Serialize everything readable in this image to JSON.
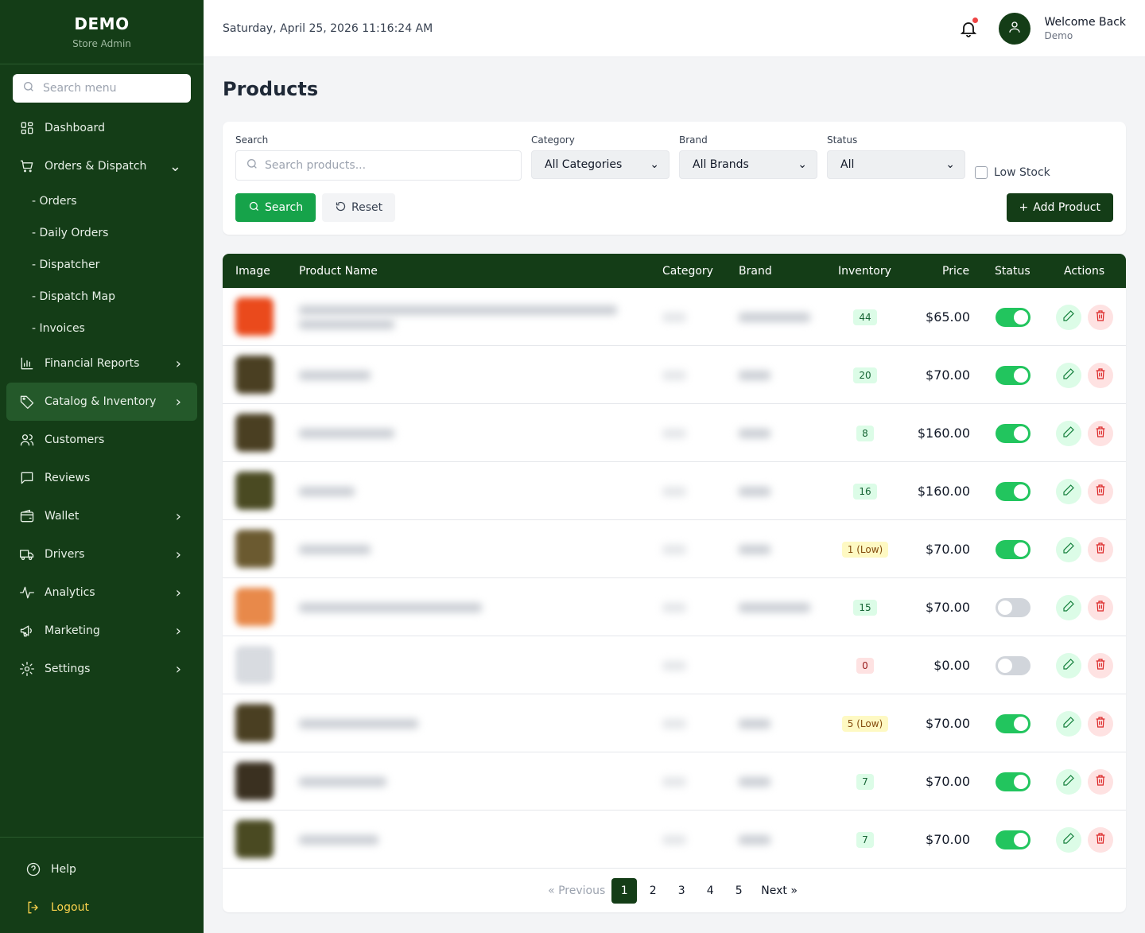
{
  "sidebar": {
    "brand": "DEMO",
    "subtitle": "Store Admin",
    "search_placeholder": "Search menu",
    "items": [
      {
        "label": "Dashboard",
        "icon": "dashboard-icon"
      },
      {
        "label": "Orders & Dispatch",
        "icon": "cart-icon",
        "expanded": true,
        "children": [
          "- Orders",
          "- Daily Orders",
          "- Dispatcher",
          "- Dispatch Map",
          "- Invoices"
        ]
      },
      {
        "label": "Financial Reports",
        "icon": "bar-chart-icon"
      },
      {
        "label": "Catalog & Inventory",
        "icon": "tag-icon",
        "active": true
      },
      {
        "label": "Customers",
        "icon": "users-icon"
      },
      {
        "label": "Reviews",
        "icon": "message-icon"
      },
      {
        "label": "Wallet",
        "icon": "wallet-icon"
      },
      {
        "label": "Drivers",
        "icon": "truck-icon"
      },
      {
        "label": "Analytics",
        "icon": "activity-icon"
      },
      {
        "label": "Marketing",
        "icon": "megaphone-icon"
      },
      {
        "label": "Settings",
        "icon": "gear-icon"
      }
    ],
    "footer": {
      "help": "Help",
      "logout": "Logout"
    }
  },
  "header": {
    "datetime": "Saturday, April 25, 2026 11:16:24 AM",
    "welcome": "Welcome Back",
    "user": "Demo"
  },
  "page": {
    "title": "Products"
  },
  "filters": {
    "search_label": "Search",
    "search_placeholder": "Search products...",
    "category_label": "Category",
    "category_value": "All Categories",
    "brand_label": "Brand",
    "brand_value": "All Brands",
    "status_label": "Status",
    "status_value": "All",
    "low_stock": "Low Stock",
    "search_btn": "Search",
    "reset_btn": "Reset",
    "add_btn": "Add Product"
  },
  "table": {
    "headers": [
      "Image",
      "Product Name",
      "Category",
      "Brand",
      "Inventory",
      "Price",
      "Status",
      "Actions"
    ],
    "rows": [
      {
        "inventory": "44",
        "level": "ok",
        "price": "$65.00",
        "active": true,
        "img": "#ea4a1c"
      },
      {
        "inventory": "20",
        "level": "ok",
        "price": "$70.00",
        "active": true,
        "img": "#4a3f22"
      },
      {
        "inventory": "8",
        "level": "ok",
        "price": "$160.00",
        "active": true,
        "img": "#4a3f22"
      },
      {
        "inventory": "16",
        "level": "ok",
        "price": "$160.00",
        "active": true,
        "img": "#4a4a22"
      },
      {
        "inventory": "1 (Low)",
        "level": "low",
        "price": "$70.00",
        "active": true,
        "img": "#6b5a30"
      },
      {
        "inventory": "15",
        "level": "ok",
        "price": "$70.00",
        "active": false,
        "img": "#e8894a"
      },
      {
        "inventory": "0",
        "level": "zero",
        "price": "$0.00",
        "active": false,
        "img": "#d8dbe0"
      },
      {
        "inventory": "5 (Low)",
        "level": "low",
        "price": "$70.00",
        "active": true,
        "img": "#4a3f22"
      },
      {
        "inventory": "7",
        "level": "ok",
        "price": "$70.00",
        "active": true,
        "img": "#3a3020"
      },
      {
        "inventory": "7",
        "level": "ok",
        "price": "$70.00",
        "active": true,
        "img": "#4a4a22"
      }
    ]
  },
  "pagination": {
    "prev": "« Previous",
    "pages": [
      "1",
      "2",
      "3",
      "4",
      "5"
    ],
    "current": "1",
    "next": "Next »"
  }
}
